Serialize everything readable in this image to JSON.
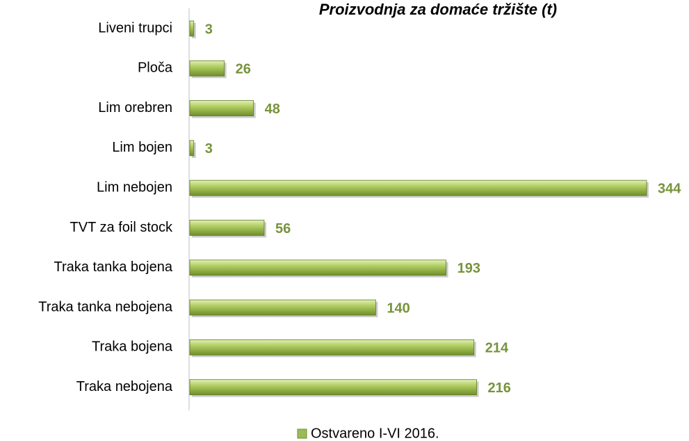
{
  "chart_data": {
    "type": "bar",
    "orientation": "horizontal",
    "title": "Proizvodnja za domaće tržište (t)",
    "categories": [
      "Liveni trupci",
      "Ploča",
      "Lim orebren",
      "Lim bojen",
      "Lim nebojen",
      "TVT za foil stock",
      "Traka tanka bojena",
      "Traka tanka nebojena",
      "Traka bojena",
      "Traka nebojena"
    ],
    "series": [
      {
        "name": "Ostvareno I-VI 2016.",
        "color": "#9bbb59",
        "values": [
          3,
          26,
          48,
          3,
          344,
          56,
          193,
          140,
          214,
          216
        ]
      }
    ],
    "legend": "bottom"
  }
}
